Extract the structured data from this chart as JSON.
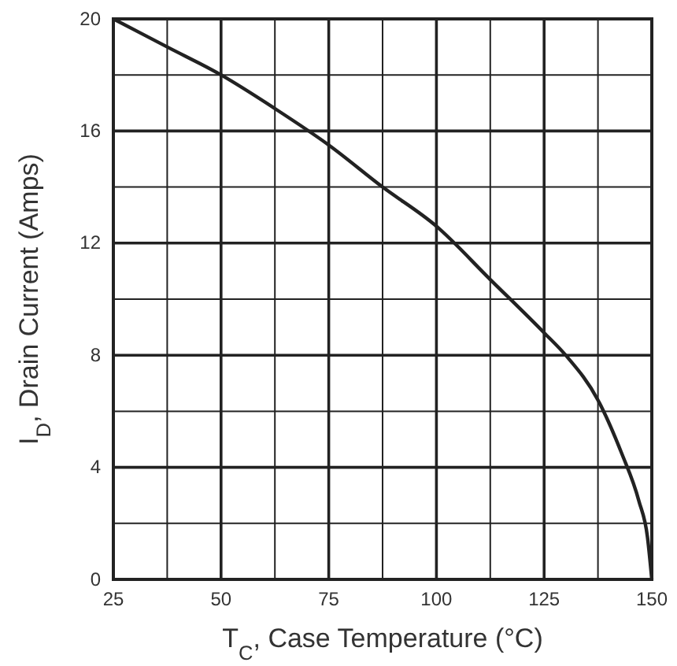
{
  "chart_data": {
    "type": "line",
    "xlabel": "T$_{C}$, Case Temperature (°C)",
    "ylabel": "I$_{D}$, Drain Current (Amps)",
    "x": [
      25,
      37.5,
      50,
      62.5,
      75,
      87.5,
      100,
      112.5,
      125,
      130,
      137.5,
      143,
      147,
      149,
      150
    ],
    "series": [
      {
        "color": "#222222",
        "values": [
          20,
          19,
          18,
          16.8,
          15.5,
          14,
          12.6,
          10.7,
          8.8,
          8,
          6.4,
          4.5,
          2.8,
          1.5,
          0
        ]
      }
    ],
    "xlim": [
      25,
      150
    ],
    "ylim": [
      0,
      20
    ],
    "xticks": [
      25,
      {
        "value": 37.5,
        "label": null
      },
      50,
      {
        "value": 62.5,
        "label": null
      },
      75,
      {
        "value": 87.5,
        "label": null
      },
      100,
      {
        "value": 112.5,
        "label": null
      },
      125,
      {
        "value": 137.5,
        "label": null
      },
      150
    ],
    "yticks": [
      0,
      {
        "value": 2,
        "label": null
      },
      4,
      {
        "value": 6,
        "label": null
      },
      8,
      {
        "value": 10,
        "label": null
      },
      12,
      {
        "value": 14,
        "label": null
      },
      16,
      {
        "value": 18,
        "label": null
      },
      20
    ],
    "grid": true,
    "marker": "none",
    "line_style": "solid"
  }
}
